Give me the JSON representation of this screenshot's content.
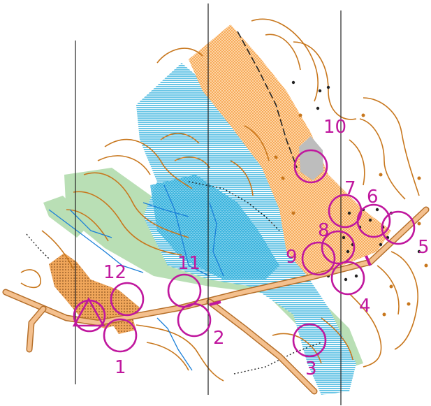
{
  "colors": {
    "course": "#c0179e",
    "contour": "#c8771d",
    "water": "#1aa7d8",
    "vegetation": "#b9dfb5",
    "road_fill": "#f4c08e",
    "road_edge": "#b56f2a",
    "rough_open": "#f6b46a",
    "rock": "#b5b5b5",
    "north_line": "#222222"
  },
  "controls": [
    {
      "number": "1"
    },
    {
      "number": "2"
    },
    {
      "number": "3"
    },
    {
      "number": "4"
    },
    {
      "number": "5"
    },
    {
      "number": "6"
    },
    {
      "number": "7"
    },
    {
      "number": "8"
    },
    {
      "number": "9"
    },
    {
      "number": "10"
    },
    {
      "number": "11"
    },
    {
      "number": "12"
    }
  ]
}
